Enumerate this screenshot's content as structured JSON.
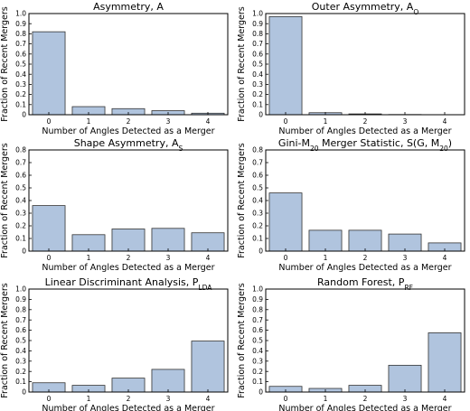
{
  "chart_data": [
    {
      "type": "bar",
      "title": "Asymmetry, A",
      "title_main": "Asymmetry, A",
      "title_sub": "",
      "xlabel": "Number of Angles Detected as a Merger",
      "ylabel": "Fraction of Recent Mergers",
      "categories": [
        "0",
        "1",
        "2",
        "3",
        "4"
      ],
      "values": [
        0.82,
        0.08,
        0.06,
        0.04,
        0.015
      ],
      "ylim": [
        0,
        1.0
      ],
      "yticks": [
        "0",
        "0.1",
        "0.2",
        "0.3",
        "0.4",
        "0.5",
        "0.6",
        "0.7",
        "0.8",
        "0.9",
        "1.0"
      ],
      "bar_color": "#b0c4de"
    },
    {
      "type": "bar",
      "title": "Outer Asymmetry, AO",
      "title_main": "Outer Asymmetry, A",
      "title_sub": "O",
      "xlabel": "Number of Angles Detected as a Merger",
      "ylabel": "Fraction of Recent Mergers",
      "categories": [
        "0",
        "1",
        "2",
        "3",
        "4"
      ],
      "values": [
        0.97,
        0.02,
        0.008,
        0.002,
        0.0
      ],
      "ylim": [
        0,
        1.0
      ],
      "yticks": [
        "0",
        "0.1",
        "0.2",
        "0.3",
        "0.4",
        "0.5",
        "0.6",
        "0.7",
        "0.8",
        "0.9",
        "1.0"
      ],
      "bar_color": "#b0c4de"
    },
    {
      "type": "bar",
      "title": "Shape Asymmetry, AS",
      "title_main": "Shape Asymmetry, A",
      "title_sub": "S",
      "xlabel": "Number of Angles Detected as a Merger",
      "ylabel": "Fraction of Recent Mergers",
      "categories": [
        "0",
        "1",
        "2",
        "3",
        "4"
      ],
      "values": [
        0.36,
        0.13,
        0.175,
        0.18,
        0.145
      ],
      "ylim": [
        0,
        0.8
      ],
      "yticks": [
        "0",
        "0.1",
        "0.2",
        "0.3",
        "0.4",
        "0.5",
        "0.6",
        "0.7",
        "0.8"
      ],
      "bar_color": "#b0c4de"
    },
    {
      "type": "bar",
      "title": "Gini-M20 Merger Statistic, S(G, M20)",
      "title_main": "Gini-M",
      "title_sub": "20",
      "title_rest": " Merger Statistic, S(G, M",
      "title_sub2": "20",
      "title_end": ")",
      "xlabel": "Number of Angles Detected as a Merger",
      "ylabel": "Fraction of Recent Mergers",
      "categories": [
        "0",
        "1",
        "2",
        "3",
        "4"
      ],
      "values": [
        0.46,
        0.165,
        0.165,
        0.135,
        0.065
      ],
      "ylim": [
        0,
        0.8
      ],
      "yticks": [
        "0",
        "0.1",
        "0.2",
        "0.3",
        "0.4",
        "0.5",
        "0.6",
        "0.7",
        "0.8"
      ],
      "bar_color": "#b0c4de"
    },
    {
      "type": "bar",
      "title": "Linear Discriminant Analysis, PLDA",
      "title_main": "Linear Discriminant Analysis, P",
      "title_sub": "LDA",
      "xlabel": "Number of Angles Detected as a Merger",
      "ylabel": "Fraction of Recent Mergers",
      "categories": [
        "0",
        "1",
        "2",
        "3",
        "4"
      ],
      "values": [
        0.09,
        0.065,
        0.135,
        0.22,
        0.495
      ],
      "ylim": [
        0,
        1.0
      ],
      "yticks": [
        "0",
        "0.1",
        "0.2",
        "0.3",
        "0.4",
        "0.5",
        "0.6",
        "0.7",
        "0.8",
        "0.9",
        "1.0"
      ],
      "bar_color": "#b0c4de"
    },
    {
      "type": "bar",
      "title": "Random Forest, PRF",
      "title_main": "Random Forest, P",
      "title_sub": "RF",
      "xlabel": "Number of Angles Detected as a Merger",
      "ylabel": "Fraction of Recent Mergers",
      "categories": [
        "0",
        "1",
        "2",
        "3",
        "4"
      ],
      "values": [
        0.055,
        0.035,
        0.065,
        0.26,
        0.575
      ],
      "ylim": [
        0,
        1.0
      ],
      "yticks": [
        "0",
        "0.1",
        "0.2",
        "0.3",
        "0.4",
        "0.5",
        "0.6",
        "0.7",
        "0.8",
        "0.9",
        "1.0"
      ],
      "bar_color": "#b0c4de"
    }
  ]
}
